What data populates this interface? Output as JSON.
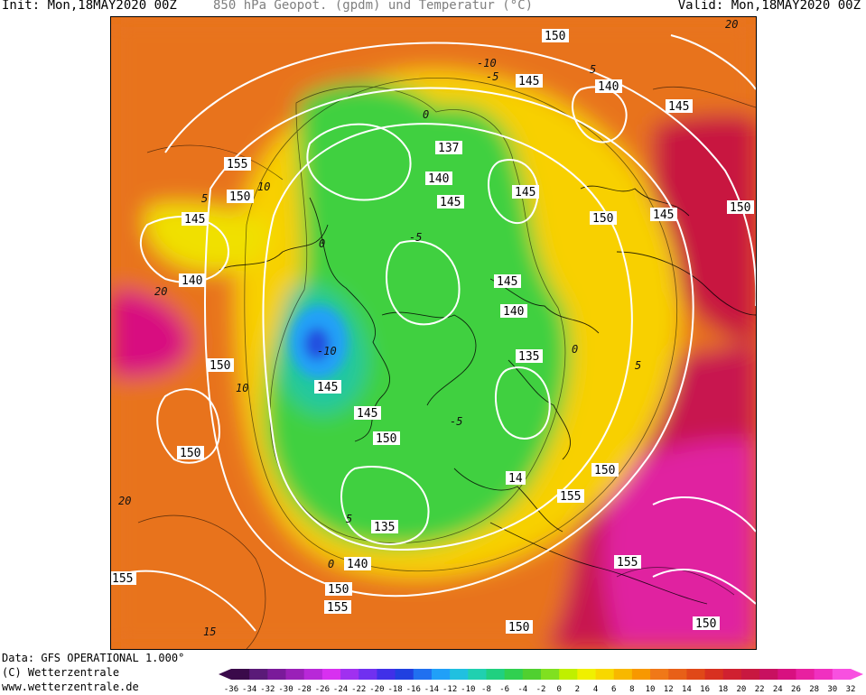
{
  "header": {
    "init": "Init: Mon,18MAY2020 00Z",
    "title": "850 hPa Geopot. (gpdm) und Temperatur (°C)",
    "valid": "Valid: Mon,18MAY2020 00Z"
  },
  "footer": {
    "data_source": "Data: GFS OPERATIONAL 1.000°",
    "copyright": "(C) Wetterzentrale",
    "url": "www.wetterzentrale.de"
  },
  "colorbar": {
    "ticks": [
      "-36",
      "-34",
      "-32",
      "-30",
      "-28",
      "-26",
      "-24",
      "-22",
      "-20",
      "-18",
      "-16",
      "-14",
      "-12",
      "-10",
      "-8",
      "-6",
      "-4",
      "-2",
      "0",
      "2",
      "4",
      "6",
      "8",
      "10",
      "12",
      "14",
      "16",
      "18",
      "20",
      "22",
      "24",
      "26",
      "28",
      "30",
      "32"
    ],
    "colors": [
      "#3a0a4a",
      "#5a1a78",
      "#7a1a9a",
      "#9a20b8",
      "#b828d8",
      "#d830f0",
      "#a030f0",
      "#7030f0",
      "#4030e8",
      "#2040e0",
      "#2070f0",
      "#20a0f8",
      "#20c0e0",
      "#20d0b0",
      "#20d080",
      "#30d050",
      "#50d030",
      "#80e020",
      "#c0f000",
      "#f0f000",
      "#f8d800",
      "#f8b800",
      "#f89800",
      "#f07818",
      "#e86018",
      "#e04818",
      "#d83020",
      "#d02030",
      "#c81840",
      "#c81060",
      "#d81080",
      "#e820a0",
      "#f030c0",
      "#f850e0"
    ]
  },
  "map": {
    "contour_labels": [
      {
        "id": "geo-150-top",
        "text": "150"
      },
      {
        "id": "geo-145-a",
        "text": "145"
      },
      {
        "id": "geo-140-ne",
        "text": "140"
      },
      {
        "id": "geo-145-ne",
        "text": "145"
      },
      {
        "id": "geo-155-w",
        "text": "155"
      },
      {
        "id": "geo-150-w",
        "text": "150"
      },
      {
        "id": "geo-137",
        "text": "137"
      },
      {
        "id": "geo-140-c",
        "text": "140"
      },
      {
        "id": "geo-145-c",
        "text": "145"
      },
      {
        "id": "geo-145-e",
        "text": "145"
      },
      {
        "id": "geo-150-e",
        "text": "150"
      },
      {
        "id": "geo-145-e2",
        "text": "145"
      },
      {
        "id": "geo-150-fe",
        "text": "150"
      },
      {
        "id": "geo-145-w2",
        "text": "145"
      },
      {
        "id": "geo-140-w",
        "text": "140"
      },
      {
        "id": "geo-145-c2",
        "text": "145"
      },
      {
        "id": "geo-140-c2",
        "text": "140"
      },
      {
        "id": "geo-135-c",
        "text": "135"
      },
      {
        "id": "geo-150-w2",
        "text": "150"
      },
      {
        "id": "geo-145-c3",
        "text": "145"
      },
      {
        "id": "geo-145-c4",
        "text": "145"
      },
      {
        "id": "geo-150-c",
        "text": "150"
      },
      {
        "id": "geo-150-sw",
        "text": "150"
      },
      {
        "id": "geo-140-s",
        "text": "14"
      },
      {
        "id": "geo-150-se",
        "text": "150"
      },
      {
        "id": "geo-155-se",
        "text": "155"
      },
      {
        "id": "geo-135-s",
        "text": "135"
      },
      {
        "id": "geo-140-s2",
        "text": "140"
      },
      {
        "id": "geo-150-s",
        "text": "150"
      },
      {
        "id": "geo-155-s",
        "text": "155"
      },
      {
        "id": "geo-155-sw",
        "text": "155"
      },
      {
        "id": "geo-155-se2",
        "text": "155"
      },
      {
        "id": "geo-150-bot",
        "text": "150"
      },
      {
        "id": "geo-150-br",
        "text": "150"
      }
    ],
    "temp_labels": [
      {
        "id": "t-10-n",
        "text": "-10"
      },
      {
        "id": "t-5-n",
        "text": "-5"
      },
      {
        "id": "t-0-n",
        "text": "0"
      },
      {
        "id": "t-5-ne",
        "text": "5"
      },
      {
        "id": "t-10-nw",
        "text": "10"
      },
      {
        "id": "t-5-w",
        "text": "5"
      },
      {
        "id": "t-0-w",
        "text": "0"
      },
      {
        "id": "t-5-e",
        "text": "5"
      },
      {
        "id": "t-0-e",
        "text": "0"
      },
      {
        "id": "t-5-c",
        "text": "-5"
      },
      {
        "id": "t-10-c",
        "text": "-10"
      },
      {
        "id": "t-5-s",
        "text": "-5"
      },
      {
        "id": "t-0-s",
        "text": "0"
      },
      {
        "id": "t-5-sw",
        "text": "5"
      },
      {
        "id": "t-10-w",
        "text": "10"
      },
      {
        "id": "t-20-w",
        "text": "20"
      },
      {
        "id": "t-15-sw",
        "text": "15"
      },
      {
        "id": "t-20-ne",
        "text": "20"
      },
      {
        "id": "t-20-sw",
        "text": "20"
      }
    ]
  }
}
